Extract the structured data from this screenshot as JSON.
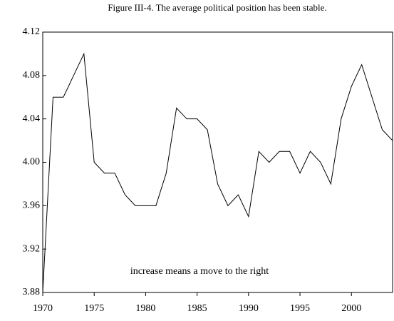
{
  "chart_data": {
    "type": "line",
    "title": "Figure III-4. The average political position has been stable.",
    "annotation": "increase means a move to the right",
    "x": [
      1970,
      1971,
      1972,
      1973,
      1974,
      1975,
      1976,
      1977,
      1978,
      1979,
      1980,
      1981,
      1982,
      1983,
      1984,
      1985,
      1986,
      1987,
      1988,
      1989,
      1990,
      1991,
      1992,
      1993,
      1994,
      1995,
      1996,
      1997,
      1998,
      1999,
      2000,
      2001,
      2002,
      2003,
      2004
    ],
    "series": [
      {
        "color": "#000000",
        "values": [
          3.88,
          4.06,
          4.06,
          4.08,
          4.1,
          4.0,
          3.99,
          3.99,
          3.97,
          3.96,
          3.96,
          3.96,
          3.99,
          4.05,
          4.04,
          4.04,
          4.03,
          3.98,
          3.96,
          3.97,
          3.95,
          4.01,
          4.0,
          4.01,
          4.01,
          3.99,
          4.01,
          4.0,
          3.98,
          4.04,
          4.07,
          4.09,
          4.06,
          4.03,
          4.02
        ]
      }
    ],
    "xlim": [
      1970,
      2004
    ],
    "xticks": [
      1970,
      1975,
      1980,
      1985,
      1990,
      1995,
      2000
    ],
    "ylim": [
      3.88,
      4.12
    ],
    "yticks": [
      3.88,
      3.92,
      3.96,
      {
        "value": 4.0,
        "label": "4.00"
      },
      4.04,
      4.08,
      4.12
    ]
  }
}
